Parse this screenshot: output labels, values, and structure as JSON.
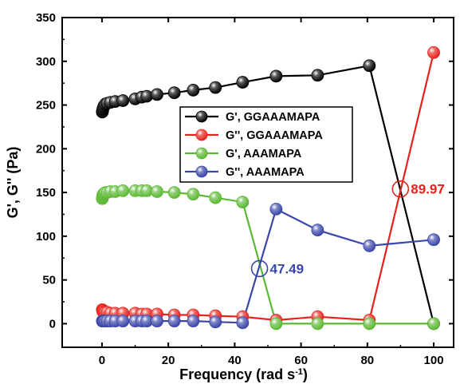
{
  "chart_data": {
    "type": "line",
    "xlabel": "Frequency (rad s",
    "xlabel_sup": "-1",
    "xlabel_close": ")",
    "ylabel": "G', G'' (Pa)",
    "xlim": [
      -12,
      106
    ],
    "ylim": [
      -27,
      350
    ],
    "xticks": [
      0,
      20,
      40,
      60,
      80,
      100
    ],
    "yticks": [
      0,
      50,
      100,
      150,
      200,
      250,
      300,
      350
    ],
    "grid": false,
    "legend": {
      "position": "center-right"
    },
    "series": [
      {
        "name": "G', GGAAAMAPA",
        "color": "#000000",
        "x": [
          0.1,
          0.16,
          0.25,
          0.4,
          0.63,
          1.0,
          1.58,
          2.51,
          3.98,
          6.31,
          10.0,
          12.0,
          13.5,
          16.6,
          21.8,
          27.5,
          34.2,
          42.4,
          52.5,
          65.0,
          80.6,
          100
        ],
        "y": [
          242,
          243,
          245,
          247,
          249,
          251,
          252,
          253,
          254,
          255,
          257,
          259,
          260,
          262,
          264,
          267,
          270,
          276,
          283,
          284,
          295,
          0
        ]
      },
      {
        "name": "G'', GGAAAMAPA",
        "color": "#e8221b",
        "x": [
          0.1,
          0.16,
          0.25,
          0.4,
          0.63,
          1.0,
          1.58,
          2.51,
          3.98,
          6.31,
          10.0,
          12.0,
          13.5,
          16.6,
          21.8,
          27.5,
          34.2,
          42.4,
          52.5,
          65.0,
          80.6,
          100
        ],
        "y": [
          16,
          15,
          14,
          14,
          13,
          13,
          13,
          12,
          12,
          12,
          12,
          11,
          11,
          11,
          10,
          10,
          9,
          8,
          4,
          8,
          4,
          310
        ]
      },
      {
        "name": "G', AAAMAPA",
        "color": "#5cb834",
        "x": [
          0.1,
          0.16,
          0.25,
          0.4,
          0.63,
          1.0,
          1.58,
          2.51,
          3.98,
          6.31,
          10.0,
          12.0,
          13.5,
          16.6,
          21.8,
          27.5,
          34.2,
          42.4,
          52.5,
          65.0,
          80.6,
          100
        ],
        "y": [
          143,
          145,
          147,
          148,
          149,
          150,
          150,
          151,
          151,
          152,
          152,
          152,
          152,
          151,
          150,
          148,
          144,
          139,
          0,
          0,
          0,
          0
        ]
      },
      {
        "name": "G'', AAAMAPA",
        "color": "#3a46a8",
        "x": [
          0.1,
          0.16,
          0.25,
          0.4,
          0.63,
          1.0,
          1.58,
          2.51,
          3.98,
          6.31,
          10.0,
          12.0,
          13.5,
          16.6,
          21.8,
          27.5,
          34.2,
          42.4,
          52.5,
          65.0,
          80.6,
          100
        ],
        "y": [
          3,
          3,
          3,
          3,
          3,
          3,
          3,
          3,
          3,
          3,
          3,
          3,
          3,
          3,
          3,
          3,
          2,
          1,
          131,
          107,
          89,
          96
        ]
      }
    ],
    "annotations": [
      {
        "label": "47.49",
        "x": 47.49,
        "y": 63,
        "color": "#3a46a8"
      },
      {
        "label": "89.97",
        "x": 89.97,
        "y": 154,
        "color": "#e8221b"
      }
    ]
  }
}
